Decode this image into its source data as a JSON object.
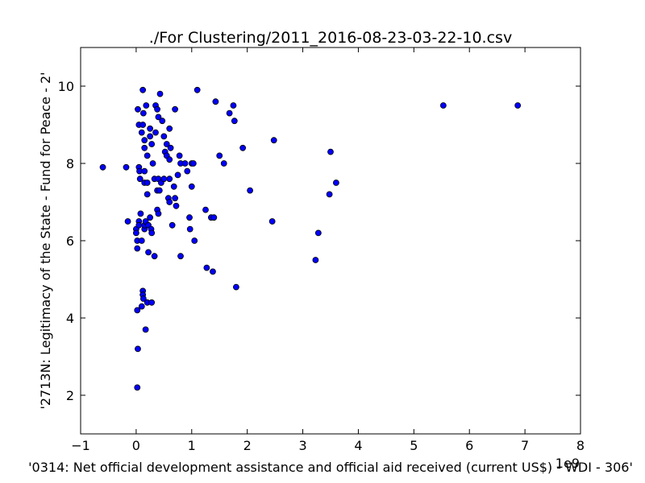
{
  "chart_data": {
    "type": "scatter",
    "title": "./For Clustering/2011_2016-08-23-03-22-10.csv",
    "x_label": "'0314: Net official development assistance and official aid received  (current US$) - WDI - 306'",
    "y_label": "'2713N: Legitimacy of the State - Fund for Peace - 2'",
    "x_offset_label": "1e9",
    "xlim": [
      -1,
      8
    ],
    "ylim": [
      1,
      11
    ],
    "xticks": [
      {
        "value": -1,
        "label": "−1"
      },
      0,
      1,
      2,
      3,
      4,
      5,
      6,
      7,
      8
    ],
    "yticks": [
      2,
      4,
      6,
      8,
      10
    ],
    "grid": false,
    "series": [
      {
        "color": "#0000ff",
        "edge_color": "#000000",
        "x": [
          -0.6,
          -0.18,
          -0.15,
          0.0,
          0.0,
          0.02,
          0.02,
          0.02,
          0.03,
          0.02,
          0.03,
          0.05,
          0.05,
          0.06,
          0.07,
          0.08,
          0.05,
          0.05,
          0.1,
          0.12,
          0.12,
          0.13,
          0.1,
          0.1,
          0.12,
          0.12,
          0.13,
          0.15,
          0.15,
          0.15,
          0.15,
          0.15,
          0.15,
          0.17,
          0.17,
          0.18,
          0.2,
          0.2,
          0.2,
          0.2,
          0.22,
          0.22,
          0.25,
          0.25,
          0.25,
          0.27,
          0.28,
          0.28,
          0.28,
          0.3,
          0.33,
          0.33,
          0.35,
          0.35,
          0.38,
          0.38,
          0.38,
          0.4,
          0.4,
          0.4,
          0.42,
          0.43,
          0.45,
          0.47,
          0.5,
          0.5,
          0.52,
          0.55,
          0.55,
          0.58,
          0.6,
          0.6,
          0.6,
          0.6,
          0.62,
          0.65,
          0.68,
          0.7,
          0.7,
          0.72,
          0.75,
          0.78,
          0.8,
          0.8,
          0.88,
          0.92,
          0.96,
          0.97,
          1.0,
          1.0,
          1.03,
          1.05,
          1.1,
          1.25,
          1.27,
          1.35,
          1.38,
          1.4,
          1.43,
          1.5,
          1.58,
          1.68,
          1.75,
          1.77,
          1.8,
          1.92,
          2.05,
          2.45,
          2.48,
          3.23,
          3.28,
          3.48,
          3.5,
          3.6,
          5.53,
          6.87
        ],
        "values": [
          7.9,
          7.9,
          6.5,
          6.3,
          6.2,
          6.0,
          5.8,
          4.2,
          3.2,
          2.2,
          9.4,
          9.0,
          7.9,
          7.8,
          7.6,
          6.7,
          6.5,
          6.4,
          8.8,
          9.0,
          9.9,
          9.3,
          6.0,
          4.3,
          4.7,
          4.6,
          4.5,
          8.6,
          8.4,
          7.8,
          7.5,
          6.3,
          6.4,
          6.5,
          3.7,
          9.5,
          8.2,
          7.5,
          7.2,
          4.4,
          5.7,
          6.4,
          8.7,
          8.9,
          6.6,
          6.3,
          6.2,
          8.5,
          4.4,
          8.0,
          7.6,
          5.6,
          9.5,
          8.8,
          9.4,
          7.3,
          6.8,
          6.7,
          9.2,
          7.6,
          7.3,
          9.8,
          7.5,
          9.1,
          8.7,
          7.6,
          8.3,
          8.2,
          8.5,
          7.1,
          8.9,
          8.1,
          7.6,
          7.0,
          8.4,
          6.4,
          7.4,
          9.4,
          7.1,
          6.9,
          7.7,
          8.2,
          8.0,
          5.6,
          8.0,
          7.8,
          6.6,
          6.3,
          8.0,
          7.4,
          8.0,
          6.0,
          9.9,
          6.8,
          5.3,
          6.6,
          5.2,
          6.6,
          9.6,
          8.2,
          8.0,
          9.3,
          9.5,
          9.1,
          4.8,
          8.4,
          7.3,
          6.5,
          8.6,
          5.5,
          6.2,
          7.2,
          8.3,
          7.5,
          9.5,
          9.5
        ]
      }
    ]
  }
}
